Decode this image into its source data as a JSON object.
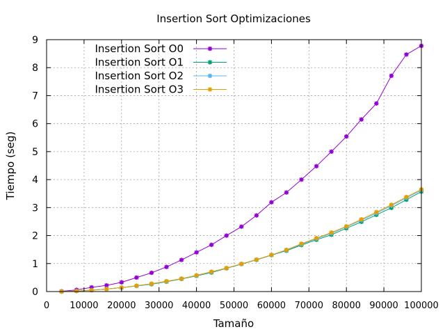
{
  "chart_data": {
    "type": "line",
    "title": "Insertion Sort Optimizaciones",
    "xlabel": "Tamaño",
    "ylabel": "Tiempo (seg)",
    "xlim": [
      0,
      100000
    ],
    "ylim": [
      0,
      9
    ],
    "x_ticks": [
      0,
      10000,
      20000,
      30000,
      40000,
      50000,
      60000,
      70000,
      80000,
      90000,
      100000
    ],
    "y_ticks": [
      0,
      1,
      2,
      3,
      4,
      5,
      6,
      7,
      8,
      9
    ],
    "x_tick_labels": [
      "0",
      "10000",
      "20000",
      "30000",
      "40000",
      "50000",
      "60000",
      "70000",
      "80000",
      "90000",
      "100000"
    ],
    "y_tick_labels": [
      "0",
      "1",
      "2",
      "3",
      "4",
      "5",
      "6",
      "7",
      "8",
      "9"
    ],
    "grid": true,
    "legend_position": "top-left",
    "x": [
      4000,
      8000,
      12000,
      16000,
      20000,
      24000,
      28000,
      32000,
      36000,
      40000,
      44000,
      48000,
      52000,
      56000,
      60000,
      64000,
      68000,
      72000,
      76000,
      80000,
      84000,
      88000,
      92000,
      96000,
      100000
    ],
    "series": [
      {
        "name": "Insertion Sort O0",
        "color": "#9400d3",
        "values": [
          0.01,
          0.06,
          0.15,
          0.22,
          0.33,
          0.5,
          0.67,
          0.88,
          1.13,
          1.4,
          1.67,
          2.0,
          2.32,
          2.72,
          3.19,
          3.54,
          4.0,
          4.48,
          5.0,
          5.54,
          6.15,
          6.72,
          7.71,
          8.47,
          8.78
        ]
      },
      {
        "name": "Insertion Sort O1",
        "color": "#009e73",
        "values": [
          0.0,
          0.02,
          0.05,
          0.09,
          0.14,
          0.2,
          0.26,
          0.35,
          0.45,
          0.56,
          0.68,
          0.83,
          0.98,
          1.13,
          1.3,
          1.46,
          1.66,
          1.85,
          2.03,
          2.26,
          2.49,
          2.74,
          2.99,
          3.28,
          3.57
        ]
      },
      {
        "name": "Insertion Sort O2",
        "color": "#56b4e9",
        "values": [
          0.0,
          0.02,
          0.05,
          0.09,
          0.14,
          0.2,
          0.27,
          0.36,
          0.46,
          0.57,
          0.7,
          0.84,
          0.99,
          1.14,
          1.31,
          1.48,
          1.69,
          1.89,
          2.08,
          2.31,
          2.55,
          2.8,
          3.07,
          3.35,
          3.62
        ]
      },
      {
        "name": "Insertion Sort O3",
        "color": "#e69f00",
        "values": [
          0.0,
          0.02,
          0.05,
          0.09,
          0.14,
          0.21,
          0.28,
          0.37,
          0.46,
          0.58,
          0.71,
          0.84,
          0.99,
          1.14,
          1.31,
          1.49,
          1.71,
          1.91,
          2.11,
          2.33,
          2.58,
          2.84,
          3.1,
          3.38,
          3.65
        ]
      }
    ]
  }
}
